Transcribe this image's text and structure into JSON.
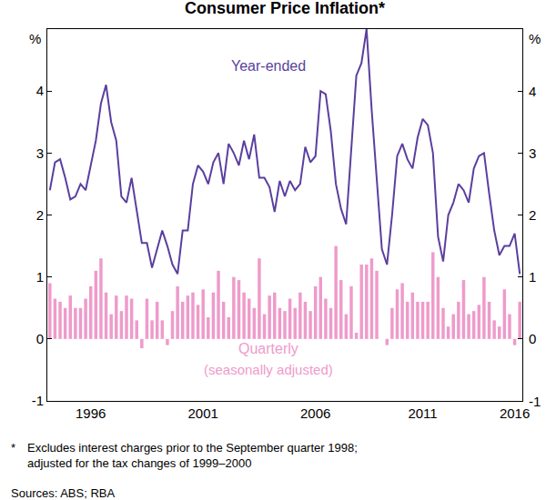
{
  "chart_data": {
    "type": "bar",
    "title": "Consumer Price Inflation*",
    "ylabel": "%",
    "categories": [
      null,
      null,
      null,
      null,
      null,
      null,
      null,
      null,
      "1996",
      null,
      null,
      null,
      null,
      null,
      null,
      null,
      null,
      null,
      null,
      null,
      null,
      null,
      null,
      null,
      null,
      null,
      null,
      null,
      null,
      null,
      "2001",
      null,
      null,
      null,
      null,
      null,
      null,
      null,
      null,
      null,
      null,
      null,
      null,
      null,
      null,
      null,
      null,
      null,
      null,
      null,
      null,
      null,
      "2006",
      null,
      null,
      null,
      null,
      null,
      null,
      null,
      null,
      null,
      null,
      null,
      null,
      null,
      null,
      null,
      null,
      null,
      null,
      null,
      null,
      "2011",
      null,
      null,
      null,
      null,
      null,
      null,
      null,
      null,
      null,
      null,
      null,
      null,
      null,
      null,
      null,
      null,
      null,
      "2016",
      null
    ],
    "series": [
      {
        "name": "Year-ended",
        "type": "line",
        "color": "#5b3f9e",
        "values": [
          2.4,
          2.85,
          2.9,
          2.6,
          2.25,
          2.3,
          2.5,
          2.4,
          2.8,
          3.2,
          3.8,
          4.1,
          3.5,
          3.2,
          2.3,
          2.2,
          2.6,
          2.1,
          1.55,
          1.55,
          1.15,
          1.45,
          1.75,
          1.5,
          1.2,
          1.05,
          1.75,
          1.75,
          2.5,
          2.8,
          2.7,
          2.5,
          2.85,
          3.0,
          2.5,
          3.15,
          3.0,
          2.8,
          3.2,
          2.9,
          3.3,
          2.6,
          2.6,
          2.45,
          2.05,
          2.55,
          2.3,
          2.55,
          2.4,
          2.5,
          3.1,
          2.85,
          2.95,
          4.0,
          3.95,
          3.35,
          2.5,
          2.1,
          1.85,
          3.05,
          4.25,
          4.45,
          5.0,
          3.7,
          2.5,
          1.45,
          1.2,
          2.0,
          2.95,
          3.15,
          2.9,
          2.75,
          3.25,
          3.55,
          3.45,
          3.0,
          1.65,
          1.25,
          2.0,
          2.2,
          2.5,
          2.4,
          2.2,
          2.75,
          2.95,
          3.0,
          2.35,
          1.75,
          1.35,
          1.5,
          1.5,
          1.7,
          1.05
        ]
      },
      {
        "name": "Quarterly (seasonally adjusted)",
        "type": "bar",
        "color": "#ee9bcb",
        "values": [
          0.9,
          0.65,
          0.6,
          0.5,
          0.7,
          0.5,
          0.5,
          0.65,
          0.85,
          1.1,
          1.3,
          0.75,
          0.4,
          0.7,
          0.45,
          0.7,
          0.65,
          0.3,
          -0.15,
          0.65,
          0.3,
          0.6,
          0.3,
          -0.1,
          0.45,
          0.85,
          0.6,
          0.7,
          0.75,
          0.55,
          0.8,
          0.35,
          0.75,
          1.1,
          0.6,
          0.35,
          1.0,
          0.95,
          0.75,
          0.65,
          0.5,
          1.3,
          0.4,
          0.7,
          0.75,
          0.5,
          0.45,
          0.65,
          0.5,
          0.75,
          0.6,
          0.45,
          0.85,
          1.0,
          0.65,
          0.5,
          1.5,
          0.95,
          0.4,
          0.85,
          0.1,
          1.2,
          1.2,
          1.3,
          1.1,
          0.0,
          -0.1,
          0.5,
          0.8,
          0.9,
          0.6,
          0.75,
          0.6,
          0.6,
          0.6,
          1.4,
          1.0,
          0.5,
          0.2,
          0.4,
          0.6,
          0.95,
          0.4,
          0.45,
          0.55,
          1.0,
          0.6,
          0.3,
          0.2,
          0.8,
          0.4,
          -0.1,
          0.6
        ]
      }
    ],
    "ylim": [
      -1,
      5
    ],
    "yticks": [
      -1,
      0,
      1,
      2,
      3,
      4
    ],
    "y2lim": [
      -1,
      5
    ],
    "y2ticks": [
      -1,
      0,
      1,
      2,
      3,
      4
    ],
    "grid": false,
    "annotations": [
      [
        "*",
        "Excludes interest charges prior to the September quarter 1998;",
        "adjusted for the tax changes of 1999–2000"
      ],
      [
        "Sources: ABS; RBA"
      ]
    ]
  }
}
